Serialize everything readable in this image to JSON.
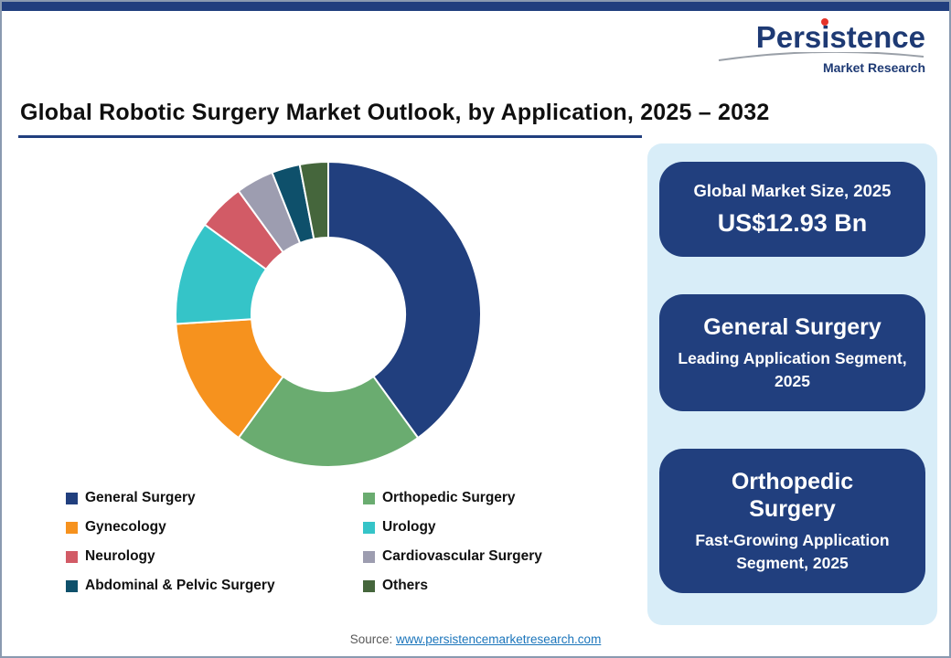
{
  "logo": {
    "name": "Persistence",
    "tagline": "Market Research"
  },
  "header": {
    "title": "Global Robotic Surgery Market Outlook, by Application, 2025 – 2032"
  },
  "colors": {
    "accent_navy": "#213F7E",
    "sidebar_bg": "#D8EDF8",
    "logo_red": "#E5332A",
    "link_blue": "#1B75BB"
  },
  "chart_data": {
    "type": "pie",
    "donut": true,
    "inner_radius_ratio": 0.5,
    "start_angle_deg": 0,
    "direction": "clockwise",
    "title": "Global Robotic Surgery Market Outlook, by Application, 2025 – 2032",
    "values_are": "estimated_share_percent",
    "legend_position": "bottom",
    "segments": [
      {
        "label": "General Surgery",
        "value": 40,
        "color": "#213F7E"
      },
      {
        "label": "Orthopedic Surgery",
        "value": 20,
        "color": "#6AAC70"
      },
      {
        "label": "Gynecology",
        "value": 14,
        "color": "#F6921E"
      },
      {
        "label": "Urology",
        "value": 11,
        "color": "#35C4C8"
      },
      {
        "label": "Neurology",
        "value": 5,
        "color": "#D25B66"
      },
      {
        "label": "Cardiovascular Surgery",
        "value": 4,
        "color": "#9D9DB0"
      },
      {
        "label": "Abdominal & Pelvic Surgery",
        "value": 3,
        "color": "#0E506B"
      },
      {
        "label": "Others",
        "value": 3,
        "color": "#45663C"
      }
    ]
  },
  "sidebar": {
    "cards": [
      {
        "line1": "Global Market Size, 2025",
        "line2": "US$12.93 Bn"
      },
      {
        "line1": "General Surgery",
        "line2": "Leading Application Segment, 2025"
      },
      {
        "line1": "Orthopedic Surgery",
        "line2": "Fast-Growing Application Segment, 2025"
      }
    ]
  },
  "footer": {
    "source_label": "Source:",
    "link_text": "www.persistencemarketresearch.com"
  }
}
